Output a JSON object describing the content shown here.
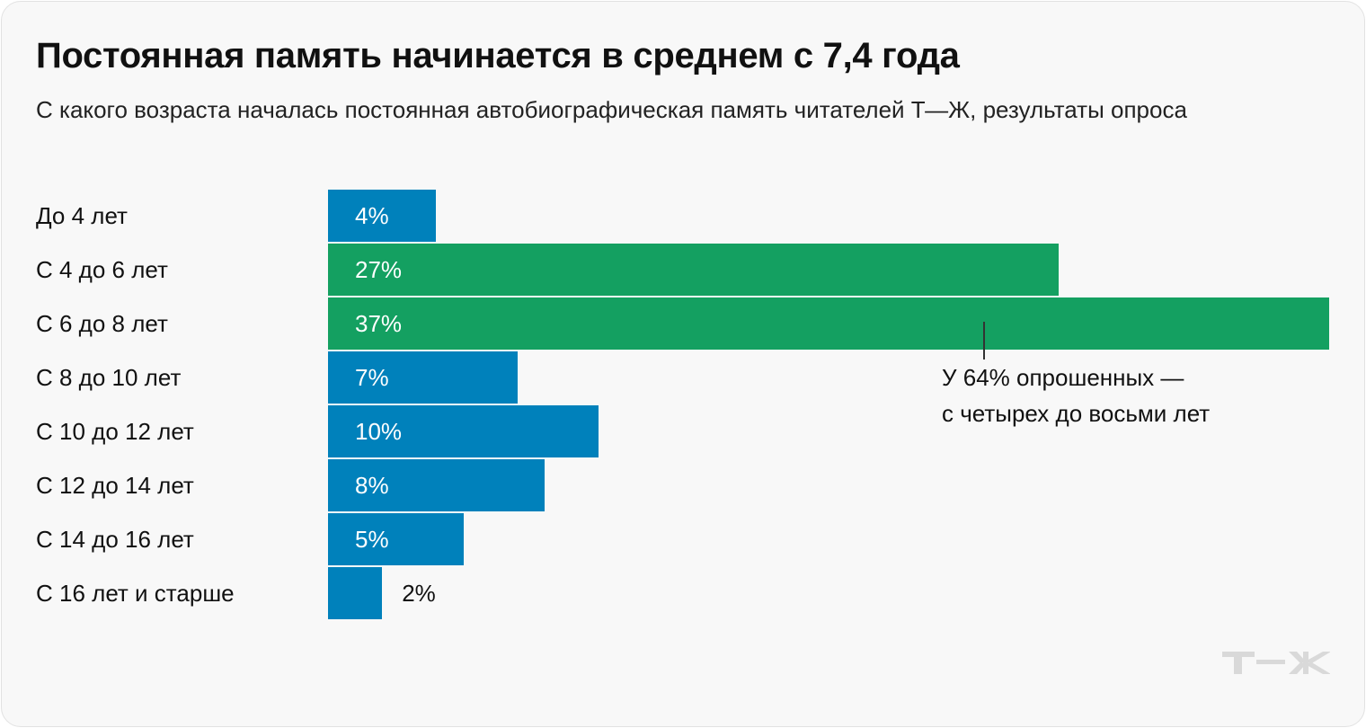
{
  "title": "Постоянная память начинается в среднем с 7,4 года",
  "subtitle": "С какого возраста началась постоянная автобиографическая память читателей Т—Ж, результаты опроса",
  "annotation": {
    "line1": "У 64% опрошенных —",
    "line2": "с четырех до восьми лет"
  },
  "logo": "Т—Ж",
  "colors": {
    "blue": "#0081bb",
    "green": "#14a061",
    "background": "#f8f8f8"
  },
  "chart_data": {
    "type": "bar",
    "orientation": "horizontal",
    "categories": [
      "До 4 лет",
      "С 4 до 6 лет",
      "С 6 до 8 лет",
      "С 8 до 10 лет",
      "С 10 до 12 лет",
      "С 12 до 14 лет",
      "С 14 до 16 лет",
      "С 16 лет и старше"
    ],
    "values": [
      4,
      27,
      37,
      7,
      10,
      8,
      5,
      2
    ],
    "labels": [
      "4%",
      "27%",
      "37%",
      "7%",
      "10%",
      "8%",
      "5%",
      "2%"
    ],
    "highlighted": [
      false,
      true,
      true,
      false,
      false,
      false,
      false,
      false
    ],
    "unit": "%",
    "xlim": [
      0,
      37
    ],
    "grid": false
  }
}
